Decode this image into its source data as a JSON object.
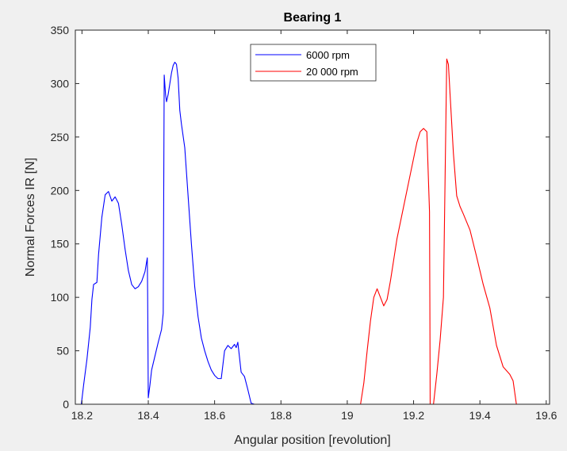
{
  "chart_data": {
    "type": "line",
    "title": "Bearing 1",
    "xlabel": "Angular position [revolution]",
    "ylabel": "Normal Forces IR [N]",
    "xlim": [
      18.18,
      19.61
    ],
    "ylim": [
      0,
      350
    ],
    "xticks": [
      18.2,
      18.4,
      18.6,
      18.8,
      19,
      19.2,
      19.4,
      19.6
    ],
    "xtick_labels": [
      "18.2",
      "18.4",
      "18.6",
      "18.8",
      "19",
      "19.2",
      "19.4",
      "19.6"
    ],
    "yticks": [
      0,
      50,
      100,
      150,
      200,
      250,
      300,
      350
    ],
    "ytick_labels": [
      "0",
      "50",
      "100",
      "150",
      "200",
      "250",
      "300",
      "350"
    ],
    "grid": false,
    "legend_position": "top-center",
    "series": [
      {
        "name": "6000 rpm",
        "color": "#0000ff",
        "points": [
          [
            18.18,
            0
          ],
          [
            18.198,
            0
          ],
          [
            18.2,
            5
          ],
          [
            18.205,
            18
          ],
          [
            18.215,
            42
          ],
          [
            18.225,
            72
          ],
          [
            18.23,
            98
          ],
          [
            18.235,
            112
          ],
          [
            18.24,
            113
          ],
          [
            18.245,
            114
          ],
          [
            18.25,
            140
          ],
          [
            18.26,
            175
          ],
          [
            18.27,
            196
          ],
          [
            18.28,
            199
          ],
          [
            18.29,
            190
          ],
          [
            18.3,
            194
          ],
          [
            18.31,
            188
          ],
          [
            18.32,
            168
          ],
          [
            18.33,
            145
          ],
          [
            18.34,
            125
          ],
          [
            18.35,
            112
          ],
          [
            18.36,
            108
          ],
          [
            18.37,
            110
          ],
          [
            18.38,
            115
          ],
          [
            18.39,
            124
          ],
          [
            18.397,
            137
          ],
          [
            18.398,
            105
          ],
          [
            18.4,
            6
          ],
          [
            18.405,
            18
          ],
          [
            18.41,
            32
          ],
          [
            18.42,
            45
          ],
          [
            18.43,
            58
          ],
          [
            18.44,
            70
          ],
          [
            18.445,
            85
          ],
          [
            18.448,
            308
          ],
          [
            18.452,
            290
          ],
          [
            18.455,
            283
          ],
          [
            18.46,
            290
          ],
          [
            18.465,
            300
          ],
          [
            18.47,
            310
          ],
          [
            18.475,
            317
          ],
          [
            18.48,
            320
          ],
          [
            18.485,
            318
          ],
          [
            18.49,
            305
          ],
          [
            18.495,
            275
          ],
          [
            18.5,
            262
          ],
          [
            18.51,
            240
          ],
          [
            18.52,
            195
          ],
          [
            18.53,
            150
          ],
          [
            18.54,
            110
          ],
          [
            18.55,
            82
          ],
          [
            18.56,
            62
          ],
          [
            18.57,
            50
          ],
          [
            18.58,
            40
          ],
          [
            18.59,
            32
          ],
          [
            18.6,
            27
          ],
          [
            18.61,
            24
          ],
          [
            18.62,
            24
          ],
          [
            18.63,
            50
          ],
          [
            18.64,
            55
          ],
          [
            18.65,
            52
          ],
          [
            18.66,
            56
          ],
          [
            18.665,
            53
          ],
          [
            18.67,
            58
          ],
          [
            18.68,
            30
          ],
          [
            18.69,
            26
          ],
          [
            18.7,
            14
          ],
          [
            18.71,
            1
          ],
          [
            18.72,
            0
          ],
          [
            19.61,
            0
          ]
        ]
      },
      {
        "name": "20 000 rpm",
        "color": "#ff0000",
        "points": [
          [
            18.18,
            0
          ],
          [
            19.04,
            0
          ],
          [
            19.05,
            20
          ],
          [
            19.06,
            50
          ],
          [
            19.07,
            78
          ],
          [
            19.08,
            100
          ],
          [
            19.09,
            108
          ],
          [
            19.1,
            100
          ],
          [
            19.11,
            92
          ],
          [
            19.12,
            98
          ],
          [
            19.13,
            115
          ],
          [
            19.14,
            135
          ],
          [
            19.15,
            155
          ],
          [
            19.17,
            185
          ],
          [
            19.19,
            215
          ],
          [
            19.21,
            245
          ],
          [
            19.22,
            255
          ],
          [
            19.23,
            258
          ],
          [
            19.24,
            255
          ],
          [
            19.248,
            180
          ],
          [
            19.249,
            100
          ],
          [
            19.25,
            0
          ],
          [
            19.26,
            0
          ],
          [
            19.27,
            28
          ],
          [
            19.28,
            60
          ],
          [
            19.29,
            100
          ],
          [
            19.295,
            212
          ],
          [
            19.3,
            323
          ],
          [
            19.305,
            318
          ],
          [
            19.31,
            290
          ],
          [
            19.32,
            235
          ],
          [
            19.33,
            195
          ],
          [
            19.34,
            185
          ],
          [
            19.35,
            178
          ],
          [
            19.37,
            163
          ],
          [
            19.39,
            138
          ],
          [
            19.41,
            112
          ],
          [
            19.43,
            90
          ],
          [
            19.45,
            55
          ],
          [
            19.47,
            35
          ],
          [
            19.49,
            28
          ],
          [
            19.5,
            22
          ],
          [
            19.51,
            0
          ],
          [
            19.52,
            0
          ],
          [
            19.61,
            0
          ]
        ]
      }
    ]
  }
}
